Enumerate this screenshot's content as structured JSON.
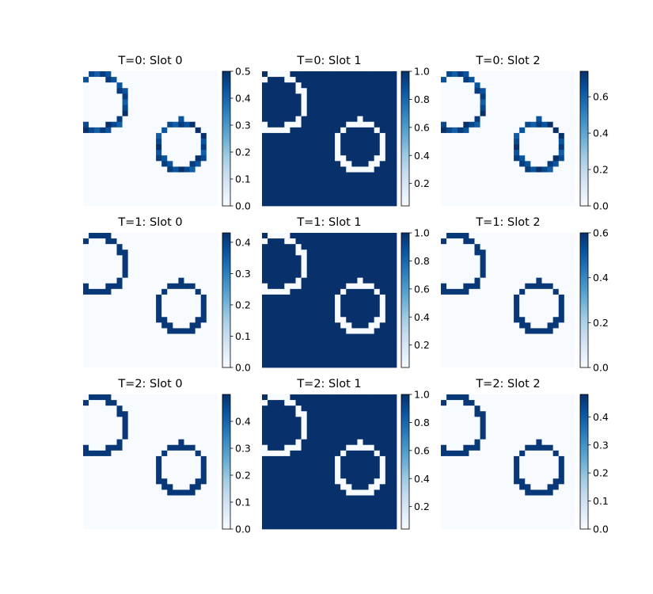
{
  "chart_data": {
    "type": "heatmap",
    "colormap": "Blues",
    "grid": false,
    "axes_visible": false,
    "grid_size": [
      24,
      24
    ],
    "panels": [
      {
        "title": "T=0: Slot 0",
        "slot": 0,
        "row": 0,
        "col": 0,
        "clim": [
          0,
          0.5
        ],
        "ticks": [
          0.0,
          0.1,
          0.2,
          0.3,
          0.4,
          0.5
        ],
        "tick_labels": [
          "0.0",
          "0.1",
          "0.2",
          "0.3",
          "0.4",
          "0.5"
        ]
      },
      {
        "title": "T=0: Slot 1",
        "slot": 1,
        "row": 0,
        "col": 1,
        "clim": [
          0.04,
          1.0
        ],
        "ticks": [
          0.2,
          0.4,
          0.6,
          0.8,
          1.0
        ],
        "tick_labels": [
          "0.2",
          "0.4",
          "0.6",
          "0.8",
          "1.0"
        ]
      },
      {
        "title": "T=0: Slot 2",
        "slot": 2,
        "row": 0,
        "col": 2,
        "clim": [
          0,
          0.74
        ],
        "ticks": [
          0.0,
          0.2,
          0.4,
          0.6
        ],
        "tick_labels": [
          "0.0",
          "0.2",
          "0.4",
          "0.6"
        ]
      },
      {
        "title": "T=1: Slot 0",
        "slot": 0,
        "row": 1,
        "col": 0,
        "clim": [
          0,
          0.43
        ],
        "ticks": [
          0.0,
          0.1,
          0.2,
          0.3,
          0.4
        ],
        "tick_labels": [
          "0.0",
          "0.1",
          "0.2",
          "0.3",
          "0.4"
        ]
      },
      {
        "title": "T=1: Slot 1",
        "slot": 1,
        "row": 1,
        "col": 1,
        "clim": [
          0.04,
          1.0
        ],
        "ticks": [
          0.2,
          0.4,
          0.6,
          0.8,
          1.0
        ],
        "tick_labels": [
          "0.2",
          "0.4",
          "0.6",
          "0.8",
          "1.0"
        ]
      },
      {
        "title": "T=1: Slot 2",
        "slot": 2,
        "row": 1,
        "col": 2,
        "clim": [
          0,
          0.6
        ],
        "ticks": [
          0.0,
          0.2,
          0.4,
          0.6
        ],
        "tick_labels": [
          "0.0",
          "0.2",
          "0.4",
          "0.6"
        ]
      },
      {
        "title": "T=2: Slot 0",
        "slot": 0,
        "row": 2,
        "col": 0,
        "clim": [
          0,
          0.5
        ],
        "ticks": [
          0.0,
          0.1,
          0.2,
          0.3,
          0.4
        ],
        "tick_labels": [
          "0.0",
          "0.1",
          "0.2",
          "0.3",
          "0.4"
        ]
      },
      {
        "title": "T=2: Slot 1",
        "slot": 1,
        "row": 2,
        "col": 1,
        "clim": [
          0.04,
          1.0
        ],
        "ticks": [
          0.2,
          0.4,
          0.6,
          0.8,
          1.0
        ],
        "tick_labels": [
          "0.2",
          "0.4",
          "0.6",
          "0.8",
          "1.0"
        ]
      },
      {
        "title": "T=2: Slot 2",
        "slot": 2,
        "row": 2,
        "col": 2,
        "clim": [
          0,
          0.48
        ],
        "ticks": [
          0.0,
          0.1,
          0.2,
          0.3,
          0.4
        ],
        "tick_labels": [
          "0.0",
          "0.1",
          "0.2",
          "0.3",
          "0.4"
        ]
      }
    ]
  }
}
